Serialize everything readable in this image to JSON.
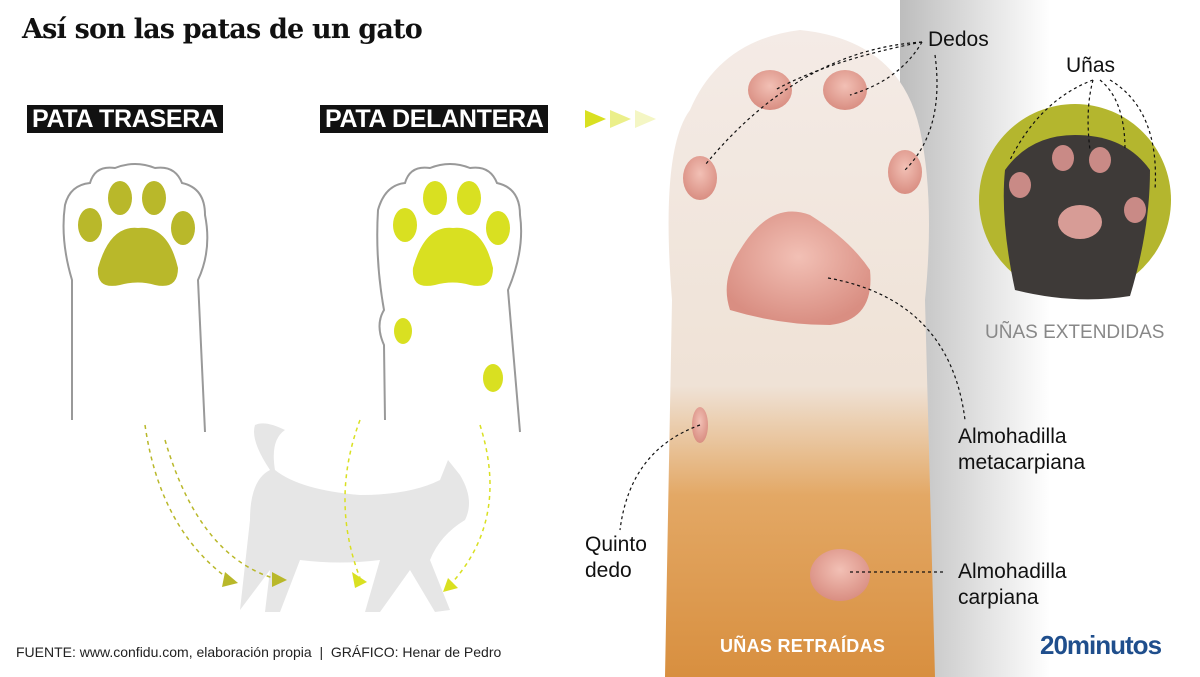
{
  "title": "Así son las patas de un gato",
  "labels": {
    "hind_paw": "PATA TRASERA",
    "front_paw": "PATA DELANTERA",
    "toes": "Dedos",
    "claws": "Uñas",
    "claws_extended": "UÑAS EXTENDIDAS",
    "metacarpal_pad_line1": "Almohadilla",
    "metacarpal_pad_line2": "metacarpiana",
    "fifth_toe_line1": "Quinto",
    "fifth_toe_line2": "dedo",
    "carpal_pad_line1": "Almohadilla",
    "carpal_pad_line2": "carpiana",
    "claws_retracted": "UÑAS RETRAÍDAS"
  },
  "footer": "FUENTE: www.confidu.com, elaboración propia  |  GRÁFICO: Henar de Pedro",
  "logo": "20minutos",
  "colors": {
    "hind_pad": "#b9b82a",
    "front_pad": "#d9e021",
    "logo": "#1f4e8c",
    "cat": "#e6e6e6",
    "circle": "#b4b62e"
  }
}
